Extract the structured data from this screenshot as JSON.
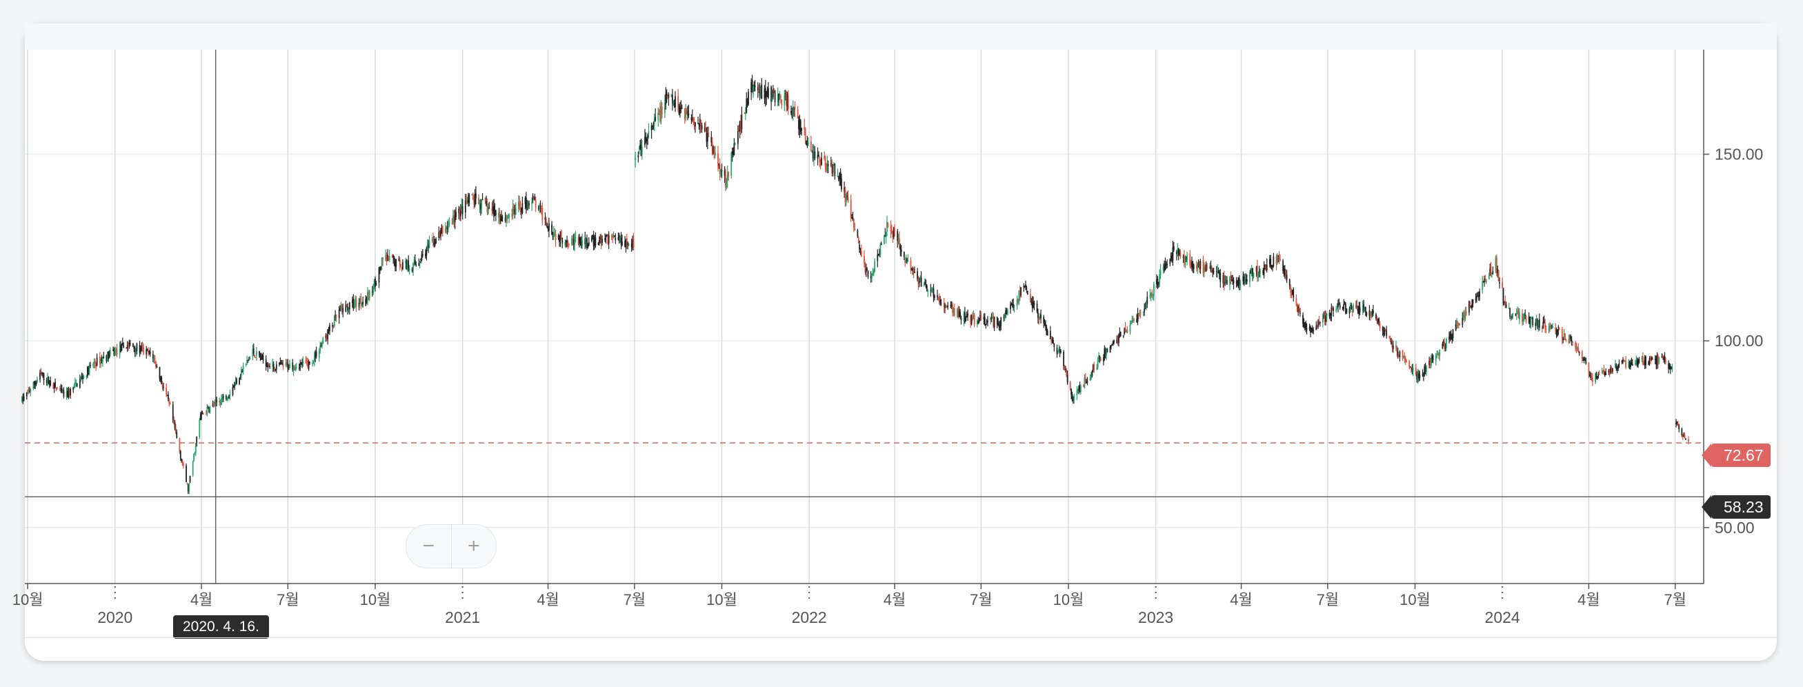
{
  "chart_data": {
    "type": "candlestick",
    "y_axis": {
      "position": "right",
      "ticks": [
        "50.00",
        "100.00",
        "150.00"
      ],
      "ylim": [
        35,
        178
      ]
    },
    "x_axis": {
      "month_ticks": [
        {
          "label": "10월",
          "date": "2019-10-01"
        },
        {
          "label": "4월",
          "date": "2020-04-01"
        },
        {
          "label": "7월",
          "date": "2020-07-01"
        },
        {
          "label": "10월",
          "date": "2020-10-01"
        },
        {
          "label": "4월",
          "date": "2021-04-01"
        },
        {
          "label": "7월",
          "date": "2021-07-01"
        },
        {
          "label": "10월",
          "date": "2021-10-01"
        },
        {
          "label": "4월",
          "date": "2022-04-01"
        },
        {
          "label": "7월",
          "date": "2022-07-01"
        },
        {
          "label": "10월",
          "date": "2022-10-01"
        },
        {
          "label": "4월",
          "date": "2023-04-01"
        },
        {
          "label": "7월",
          "date": "2023-07-01"
        },
        {
          "label": "10월",
          "date": "2023-10-01"
        },
        {
          "label": "4월",
          "date": "2024-04-01"
        },
        {
          "label": "7월",
          "date": "2024-07-01"
        }
      ],
      "year_ticks": [
        {
          "label": "2020",
          "date": "2020-01-01"
        },
        {
          "label": "2021",
          "date": "2021-01-01"
        },
        {
          "label": "2022",
          "date": "2022-01-01"
        },
        {
          "label": "2023",
          "date": "2023-01-01"
        },
        {
          "label": "2024",
          "date": "2024-01-01"
        }
      ],
      "range": [
        "2019-09-28",
        "2024-07-31"
      ]
    },
    "price_path": [
      [
        "2019-09-25",
        84
      ],
      [
        "2019-10-15",
        91
      ],
      [
        "2019-11-10",
        85
      ],
      [
        "2019-12-10",
        94
      ],
      [
        "2020-01-15",
        99
      ],
      [
        "2020-02-10",
        96
      ],
      [
        "2020-02-28",
        82
      ],
      [
        "2020-03-18",
        60
      ],
      [
        "2020-03-31",
        80
      ],
      [
        "2020-04-30",
        86
      ],
      [
        "2020-05-25",
        97
      ],
      [
        "2020-06-15",
        93
      ],
      [
        "2020-07-25",
        94
      ],
      [
        "2020-08-25",
        108
      ],
      [
        "2020-09-25",
        112
      ],
      [
        "2020-10-10",
        122
      ],
      [
        "2020-11-10",
        120
      ],
      [
        "2020-12-20",
        132
      ],
      [
        "2021-01-10",
        138
      ],
      [
        "2021-02-15",
        133
      ],
      [
        "2021-03-15",
        138
      ],
      [
        "2021-04-10",
        128
      ],
      [
        "2021-05-10",
        126
      ],
      [
        "2021-06-10",
        128
      ],
      [
        "2021-06-30",
        126
      ],
      [
        "2021-07-02",
        148
      ],
      [
        "2021-08-05",
        165
      ],
      [
        "2021-09-10",
        158
      ],
      [
        "2021-10-05",
        143
      ],
      [
        "2021-11-01",
        168
      ],
      [
        "2021-12-10",
        164
      ],
      [
        "2022-01-05",
        150
      ],
      [
        "2022-02-01",
        145
      ],
      [
        "2022-03-05",
        116
      ],
      [
        "2022-03-25",
        132
      ],
      [
        "2022-04-20",
        118
      ],
      [
        "2022-05-20",
        110
      ],
      [
        "2022-06-15",
        106
      ],
      [
        "2022-07-20",
        105
      ],
      [
        "2022-08-15",
        114
      ],
      [
        "2022-09-25",
        95
      ],
      [
        "2022-10-05",
        84
      ],
      [
        "2022-11-05",
        96
      ],
      [
        "2022-12-15",
        107
      ],
      [
        "2023-01-20",
        124
      ],
      [
        "2023-02-15",
        120
      ],
      [
        "2023-03-25",
        115
      ],
      [
        "2023-05-10",
        122
      ],
      [
        "2023-06-10",
        102
      ],
      [
        "2023-07-10",
        109
      ],
      [
        "2023-08-15",
        108
      ],
      [
        "2023-09-15",
        96
      ],
      [
        "2023-10-05",
        90
      ],
      [
        "2023-11-10",
        102
      ],
      [
        "2023-12-25",
        121
      ],
      [
        "2024-01-05",
        108
      ],
      [
        "2024-02-15",
        104
      ],
      [
        "2024-03-15",
        100
      ],
      [
        "2024-04-05",
        90
      ],
      [
        "2024-05-10",
        94
      ],
      [
        "2024-06-15",
        95
      ],
      [
        "2024-06-30",
        93
      ],
      [
        "2024-07-02",
        78
      ],
      [
        "2024-07-15",
        72.67
      ]
    ],
    "gaps": [
      [
        "2021-06-30",
        "2021-07-02"
      ],
      [
        "2024-06-30",
        "2024-07-02"
      ]
    ],
    "colors": {
      "up": "#27a56b",
      "down": "#e0533f",
      "neutral": "#222222"
    },
    "last_price": {
      "label": "72.67",
      "value": 72.67,
      "color": "#e06461"
    },
    "crosshair": {
      "price_label": "58.23",
      "value": 58.23,
      "date_label": "2020. 4. 16.",
      "date": "2020-04-16"
    }
  },
  "zoom": {
    "minus_label": "−",
    "plus_label": "+"
  }
}
